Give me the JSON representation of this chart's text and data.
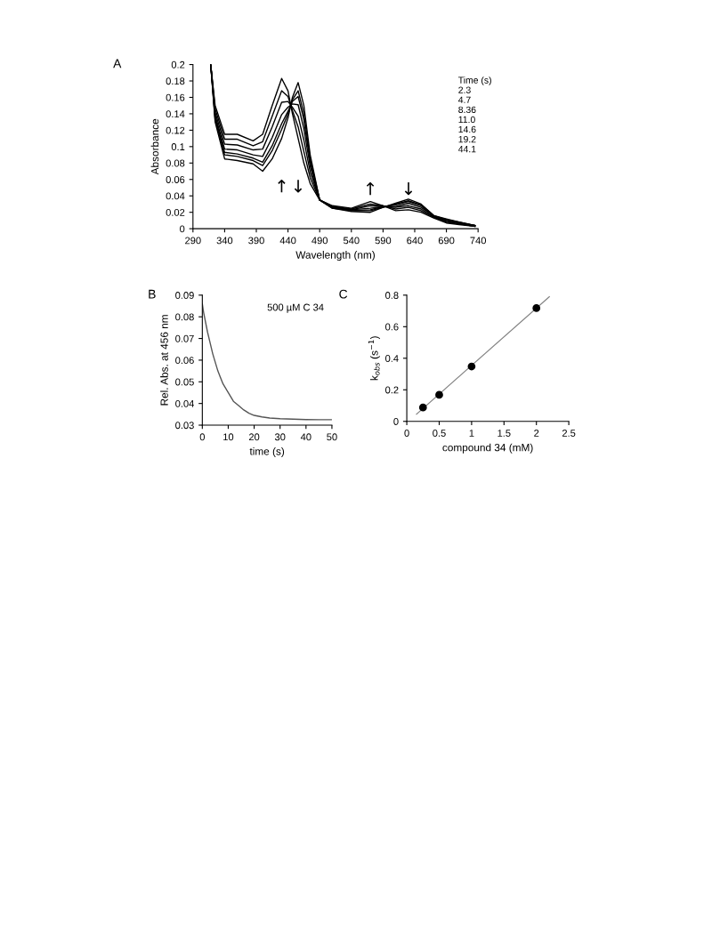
{
  "chart_data": [
    {
      "type": "line",
      "title": "A",
      "xlabel": "Wavelength (nm)",
      "ylabel": "Absorbance",
      "x": [
        318,
        325,
        340,
        360,
        385,
        400,
        415,
        430,
        440,
        447,
        456,
        465,
        475,
        490,
        510,
        540,
        570,
        590,
        610,
        630,
        650,
        670,
        690,
        710,
        735
      ],
      "series": [
        {
          "color": "#000000",
          "values": [
            0.2,
            0.13,
            0.085,
            0.083,
            0.079,
            0.07,
            0.085,
            0.11,
            0.135,
            0.16,
            0.178,
            0.15,
            0.09,
            0.035,
            0.025,
            0.021,
            0.02,
            0.026,
            0.031,
            0.036,
            0.03,
            0.016,
            0.012,
            0.008,
            0.004
          ]
        },
        {
          "color": "#000000",
          "values": [
            0.2,
            0.133,
            0.09,
            0.088,
            0.083,
            0.077,
            0.095,
            0.121,
            0.14,
            0.157,
            0.168,
            0.14,
            0.085,
            0.035,
            0.025,
            0.022,
            0.022,
            0.026,
            0.03,
            0.034,
            0.029,
            0.016,
            0.011,
            0.008,
            0.004
          ]
        },
        {
          "color": "#000000",
          "values": [
            0.2,
            0.135,
            0.093,
            0.091,
            0.086,
            0.081,
            0.101,
            0.128,
            0.143,
            0.155,
            0.161,
            0.133,
            0.081,
            0.035,
            0.026,
            0.022,
            0.023,
            0.027,
            0.029,
            0.033,
            0.028,
            0.015,
            0.011,
            0.007,
            0.004
          ]
        },
        {
          "color": "#000000",
          "values": [
            0.2,
            0.138,
            0.097,
            0.096,
            0.09,
            0.088,
            0.111,
            0.139,
            0.148,
            0.152,
            0.151,
            0.122,
            0.076,
            0.035,
            0.026,
            0.023,
            0.025,
            0.027,
            0.027,
            0.031,
            0.026,
            0.015,
            0.01,
            0.007,
            0.004
          ]
        },
        {
          "color": "#000000",
          "values": [
            0.2,
            0.142,
            0.103,
            0.102,
            0.096,
            0.097,
            0.124,
            0.154,
            0.155,
            0.148,
            0.137,
            0.108,
            0.069,
            0.035,
            0.027,
            0.023,
            0.028,
            0.027,
            0.026,
            0.028,
            0.024,
            0.014,
            0.009,
            0.006,
            0.003
          ]
        },
        {
          "color": "#000000",
          "values": [
            0.2,
            0.146,
            0.109,
            0.109,
            0.101,
            0.106,
            0.137,
            0.168,
            0.161,
            0.144,
            0.124,
            0.094,
            0.062,
            0.035,
            0.027,
            0.024,
            0.03,
            0.028,
            0.024,
            0.026,
            0.022,
            0.014,
            0.008,
            0.006,
            0.003
          ]
        },
        {
          "color": "#000000",
          "values": [
            0.2,
            0.15,
            0.115,
            0.115,
            0.107,
            0.115,
            0.15,
            0.183,
            0.168,
            0.14,
            0.11,
            0.08,
            0.055,
            0.035,
            0.028,
            0.025,
            0.033,
            0.028,
            0.022,
            0.023,
            0.02,
            0.013,
            0.007,
            0.005,
            0.003
          ]
        }
      ],
      "xlim": [
        290,
        740
      ],
      "xticks": [
        290,
        340,
        390,
        440,
        490,
        540,
        590,
        640,
        690,
        740
      ],
      "ylim": [
        0,
        0.2
      ],
      "yticks": [
        0,
        0.02,
        0.04,
        0.06,
        0.08,
        0.1,
        0.12,
        0.14,
        0.16,
        0.18,
        0.2
      ],
      "grid": false,
      "legend": false,
      "marker": "none",
      "line_style": "solid",
      "annotations": [
        "Time (s)",
        "2.3",
        "4.7",
        "8.36",
        "11.0",
        "14.6",
        "19.2",
        "44.1",
        "↑",
        "↓",
        "↑",
        "↓"
      ]
    },
    {
      "type": "line",
      "title": "B",
      "xlabel": "time (s)",
      "ylabel": "Rel. Abs. at 456 nm",
      "x": [
        0,
        0.5,
        1,
        2,
        3,
        4,
        5,
        6,
        7,
        8,
        10,
        12,
        14,
        16,
        18,
        20,
        23,
        26,
        30,
        35,
        40,
        45,
        50
      ],
      "series": [
        {
          "color": "#555555",
          "values": [
            0.086,
            0.082,
            0.079,
            0.073,
            0.068,
            0.063,
            0.059,
            0.055,
            0.052,
            0.049,
            0.045,
            0.041,
            0.039,
            0.037,
            0.0355,
            0.0345,
            0.0338,
            0.0333,
            0.033,
            0.0328,
            0.0326,
            0.0325,
            0.0325
          ]
        }
      ],
      "xlim": [
        0,
        50
      ],
      "xticks": [
        0,
        10,
        20,
        30,
        40,
        50
      ],
      "ylim": [
        0.03,
        0.09
      ],
      "yticks": [
        0.03,
        0.04,
        0.05,
        0.06,
        0.07,
        0.08,
        0.09
      ],
      "grid": false,
      "legend": false,
      "marker": "none",
      "line_style": "solid",
      "annotations": [
        "500 µM C 34"
      ]
    },
    {
      "type": "scatter",
      "title": "C",
      "xlabel": "compound 34 (mM)",
      "ylabel": "k$_{obs}$ (s$^{−1}$)",
      "x": [
        0.25,
        0.5,
        1,
        2
      ],
      "series": [
        {
          "color": "#000000",
          "values": [
            0.088,
            0.168,
            0.348,
            0.718
          ],
          "marker": "circle"
        },
        {
          "type": "line",
          "color": "#808080",
          "x": [
            0.15,
            2.2
          ],
          "values": [
            0.045,
            0.79
          ],
          "marker": "none"
        }
      ],
      "xlim": [
        0,
        2.5
      ],
      "xticks": [
        0,
        0.5,
        1,
        1.5,
        2,
        2.5
      ],
      "ylim": [
        0,
        0.8
      ],
      "yticks": [
        0,
        0.2,
        0.4,
        0.6,
        0.8
      ],
      "grid": false,
      "legend": false
    }
  ]
}
